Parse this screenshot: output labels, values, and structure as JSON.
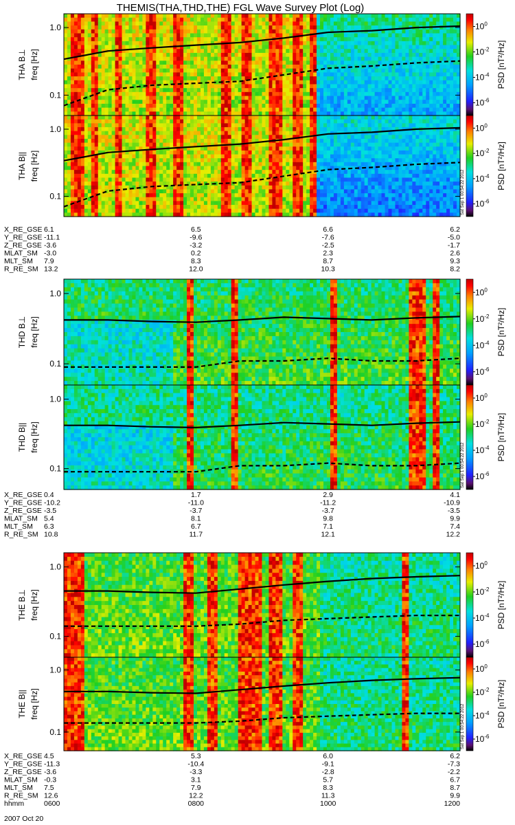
{
  "title": "THEMIS(THA,THD,THE) FGL Wave Survey Plot (Log)",
  "chart_data": {
    "type": "heatmap",
    "title": "THEMIS(THA,THD,THE) FGL Wave Survey Plot (Log)",
    "date": "2007 Oct 20",
    "x_ticks_hhmm": [
      "0600",
      "0800",
      "1000",
      "1200"
    ],
    "y_ticks": [
      "0.1",
      "1.0"
    ],
    "y_range_hz": [
      0.05,
      1.6
    ],
    "y_scale": "log",
    "colorbar": {
      "label": "PSD [nT²/Hz]",
      "range": [
        1e-07,
        10
      ],
      "ticks": [
        {
          "base": "10",
          "exp": "0",
          "value": 1
        },
        {
          "base": "10",
          "exp": "-2",
          "value": 0.01
        },
        {
          "base": "10",
          "exp": "-4",
          "value": 0.0001
        },
        {
          "base": "10",
          "exp": "-6",
          "value": 1e-06
        }
      ]
    },
    "panels": [
      {
        "probe": "THA",
        "label": "THA B⊥",
        "ylabel": "freq [Hz]",
        "stamp": "Sat Sep  1 00:54:22 2012",
        "show_stamp": false
      },
      {
        "probe": "THA",
        "label": "THA B||",
        "ylabel": "freq [Hz]",
        "stamp": "Sat Sep  1 00:54:22 2012",
        "show_stamp": true
      },
      {
        "probe": "THD",
        "label": "THD B⊥",
        "ylabel": "freq [Hz]",
        "stamp": "Sat Sep  1 00:54:22 2012",
        "show_stamp": false
      },
      {
        "probe": "THD",
        "label": "THD B||",
        "ylabel": "freq [Hz]",
        "stamp": "Sat Sep  1 00:54:22 2012",
        "show_stamp": true
      },
      {
        "probe": "THE",
        "label": "THE B⊥",
        "ylabel": "freq [Hz]",
        "stamp": "Sat Sep  1 00:54:22 2012",
        "show_stamp": false
      },
      {
        "probe": "THE",
        "label": "THE B||",
        "ylabel": "freq [Hz]",
        "stamp": "Sat Sep  1 00:54:22 2012",
        "show_stamp": true
      }
    ],
    "ephemeris": [
      {
        "probe": "THA",
        "rows": [
          {
            "name": "X_RE_GSE",
            "values": [
              "6.1",
              "6.5",
              "6.6",
              "6.2"
            ]
          },
          {
            "name": "Y_RE_GSE",
            "values": [
              "-11.1",
              "-9.6",
              "-7.6",
              "-5.0"
            ]
          },
          {
            "name": "Z_RE_GSE",
            "values": [
              "-3.6",
              "-3.2",
              "-2.5",
              "-1.7"
            ]
          },
          {
            "name": "MLAT_SM",
            "values": [
              "-3.0",
              "0.2",
              "2.3",
              "2.6"
            ]
          },
          {
            "name": "MLT_SM",
            "values": [
              "7.9",
              "8.3",
              "8.7",
              "9.3"
            ]
          },
          {
            "name": "R_RE_SM",
            "values": [
              "13.2",
              "12.0",
              "10.3",
              "8.2"
            ]
          }
        ]
      },
      {
        "probe": "THD",
        "rows": [
          {
            "name": "X_RE_GSE",
            "values": [
              "0.4",
              "1.7",
              "2.9",
              "4.1"
            ]
          },
          {
            "name": "Y_RE_GSE",
            "values": [
              "-10.2",
              "-11.0",
              "-11.2",
              "-10.9"
            ]
          },
          {
            "name": "Z_RE_GSE",
            "values": [
              "-3.5",
              "-3.7",
              "-3.7",
              "-3.5"
            ]
          },
          {
            "name": "MLAT_SM",
            "values": [
              "5.4",
              "8.1",
              "9.8",
              "9.9"
            ]
          },
          {
            "name": "MLT_SM",
            "values": [
              "6.3",
              "6.7",
              "7.1",
              "7.4"
            ]
          },
          {
            "name": "R_RE_SM",
            "values": [
              "10.8",
              "11.7",
              "12.1",
              "12.2"
            ]
          }
        ]
      },
      {
        "probe": "THE",
        "rows": [
          {
            "name": "X_RE_GSE",
            "values": [
              "4.5",
              "5.3",
              "6.0",
              "6.2"
            ]
          },
          {
            "name": "Y_RE_GSE",
            "values": [
              "-11.3",
              "-10.4",
              "-9.1",
              "-7.3"
            ]
          },
          {
            "name": "Z_RE_GSE",
            "values": [
              "-3.6",
              "-3.3",
              "-2.8",
              "-2.2"
            ]
          },
          {
            "name": "MLAT_SM",
            "values": [
              "-0.3",
              "3.1",
              "5.7",
              "6.7"
            ]
          },
          {
            "name": "MLT_SM",
            "values": [
              "7.5",
              "7.9",
              "8.3",
              "8.7"
            ]
          },
          {
            "name": "R_RE_SM",
            "values": [
              "12.6",
              "12.2",
              "11.3",
              "9.9"
            ]
          },
          {
            "name": "hhmm",
            "values": [
              "0600",
              "0800",
              "1000",
              "1200"
            ]
          }
        ]
      }
    ],
    "overlays": [
      {
        "style": "solid",
        "probe": "THA",
        "hz": [
          0.34,
          0.45,
          0.5,
          0.55,
          0.6,
          0.7,
          0.85,
          0.9,
          1.0,
          1.05
        ]
      },
      {
        "style": "dashed",
        "probe": "THA",
        "hz": [
          0.07,
          0.12,
          0.14,
          0.15,
          0.16,
          0.2,
          0.25,
          0.27,
          0.3,
          0.32
        ]
      },
      {
        "style": "solid",
        "probe": "THD",
        "hz": [
          0.42,
          0.42,
          0.4,
          0.39,
          0.42,
          0.46,
          0.44,
          0.42,
          0.45,
          0.47
        ]
      },
      {
        "style": "dashed",
        "probe": "THD",
        "hz": [
          0.09,
          0.09,
          0.09,
          0.09,
          0.11,
          0.11,
          0.12,
          0.11,
          0.11,
          0.12
        ]
      },
      {
        "style": "solid",
        "probe": "THE",
        "hz": [
          0.45,
          0.45,
          0.43,
          0.42,
          0.48,
          0.55,
          0.62,
          0.68,
          0.72,
          0.75
        ]
      },
      {
        "style": "dashed",
        "probe": "THE",
        "hz": [
          0.14,
          0.14,
          0.14,
          0.14,
          0.15,
          0.17,
          0.18,
          0.19,
          0.2,
          0.2
        ]
      }
    ]
  }
}
